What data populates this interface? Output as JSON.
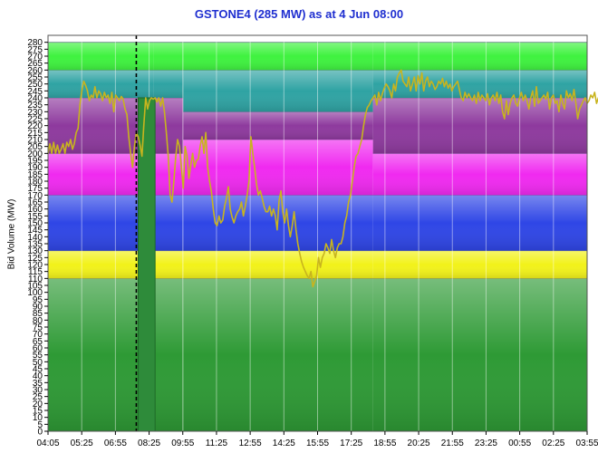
{
  "chart_data": {
    "type": "area",
    "title": "GSTONE4 (285 MW) as at 4 Jun 08:00",
    "xlabel": "",
    "ylabel": "Bid Volume (MW)",
    "ylim": [
      0,
      285
    ],
    "y_ticks": [
      0,
      5,
      10,
      15,
      20,
      25,
      30,
      35,
      40,
      45,
      50,
      55,
      60,
      65,
      70,
      75,
      80,
      85,
      90,
      95,
      100,
      105,
      110,
      115,
      120,
      125,
      130,
      135,
      140,
      145,
      150,
      155,
      160,
      165,
      170,
      175,
      180,
      185,
      190,
      195,
      200,
      205,
      210,
      215,
      220,
      225,
      230,
      235,
      240,
      245,
      250,
      255,
      260,
      265,
      270,
      275,
      280
    ],
    "x_ticks": [
      "04:05",
      "05:25",
      "06:55",
      "08:25",
      "09:55",
      "11:25",
      "12:55",
      "14:25",
      "15:55",
      "17:25",
      "18:55",
      "20:25",
      "21:55",
      "23:25",
      "00:55",
      "02:25",
      "03:55"
    ],
    "x_range_intervals": [
      0,
      287
    ],
    "grid": true,
    "current_time_marker": {
      "label": "08:00",
      "interval": 47
    },
    "band_colors": {
      "dark_green": "#2e9a35",
      "yellow": "#f2f21a",
      "blue": "#2f46e6",
      "magenta": "#f02af0",
      "purple": "#8e3a9e",
      "teal": "#2fa3a3",
      "light_green": "#3ff23f",
      "actual_line": "#c8b41e",
      "dispatch_bar": "#2e8b3a"
    },
    "band_segments": [
      {
        "from": 0,
        "to": 56,
        "bounds": [
          110,
          130,
          170,
          200,
          240,
          260,
          280
        ]
      },
      {
        "from": 56,
        "to": 72,
        "bounds": [
          110,
          130,
          170,
          200,
          240,
          260,
          280
        ]
      },
      {
        "from": 72,
        "to": 173,
        "bounds": [
          110,
          130,
          170,
          210,
          230,
          260,
          280
        ]
      },
      {
        "from": 173,
        "to": 288,
        "bounds": [
          110,
          130,
          170,
          200,
          240,
          260,
          280
        ]
      }
    ],
    "dispatch_bar": {
      "from": 48,
      "to": 57,
      "value": 240
    },
    "series": [
      {
        "values": [
          200,
          207,
          200,
          208,
          200,
          206,
          200,
          203,
          207,
          200,
          208,
          205,
          210,
          203,
          207,
          215,
          218,
          235,
          245,
          252,
          249,
          245,
          238,
          242,
          240,
          248,
          240,
          245,
          243,
          238,
          244,
          240,
          242,
          236,
          244,
          230,
          242,
          240,
          238,
          241,
          239,
          232,
          228,
          212,
          200,
          190,
          205,
          215,
          212,
          206,
          198,
          220,
          240,
          232,
          238,
          240,
          239,
          240,
          237,
          240,
          234,
          240,
          230,
          215,
          198,
          170,
          165,
          180,
          198,
          210,
          205,
          190,
          175,
          205,
          198,
          182,
          192,
          200,
          190,
          195,
          196,
          205,
          212,
          200,
          215,
          190,
          180,
          172,
          160,
          150,
          148,
          155,
          150,
          152,
          162,
          168,
          176,
          160,
          154,
          150,
          155,
          158,
          160,
          165,
          155,
          162,
          170,
          180,
          212,
          200,
          190,
          178,
          170,
          173,
          168,
          162,
          158,
          158,
          162,
          155,
          160,
          155,
          145,
          166,
          173,
          158,
          150,
          160,
          148,
          140,
          148,
          158,
          145,
          135,
          128,
          122,
          118,
          115,
          112,
          110,
          115,
          104,
          108,
          112,
          125,
          118,
          125,
          128,
          135,
          132,
          128,
          138,
          130,
          125,
          132,
          135,
          135,
          140,
          150,
          155,
          165,
          170,
          180,
          190,
          198,
          200,
          205,
          210,
          220,
          228,
          233,
          235,
          238,
          240,
          242,
          235,
          244,
          238,
          243,
          247,
          250,
          248,
          245,
          240,
          250,
          245,
          255,
          258,
          260,
          252,
          250,
          248,
          255,
          245,
          250,
          255,
          245,
          256,
          250,
          258,
          245,
          252,
          255,
          248,
          252,
          250,
          246,
          248,
          252,
          250,
          254,
          248,
          252,
          247,
          250,
          245,
          248,
          250,
          252,
          246,
          240,
          238,
          244,
          240,
          243,
          240,
          238,
          242,
          236,
          244,
          238,
          242,
          240,
          238,
          243,
          235,
          240,
          242,
          238,
          244,
          236,
          242,
          230,
          225,
          238,
          228,
          236,
          240,
          242,
          236,
          234,
          240,
          244,
          238,
          242,
          238,
          232,
          240,
          245,
          234,
          248,
          236,
          238,
          240,
          242,
          239,
          244,
          232,
          240,
          242,
          236,
          238,
          230,
          242,
          236,
          232,
          245,
          240,
          243,
          238,
          246,
          236,
          225,
          232,
          235,
          238,
          240,
          236,
          238,
          242,
          240,
          244,
          236,
          240,
          243,
          238,
          241,
          240,
          236,
          230,
          238,
          236,
          240,
          228,
          238,
          234
        ]
      }
    ]
  }
}
